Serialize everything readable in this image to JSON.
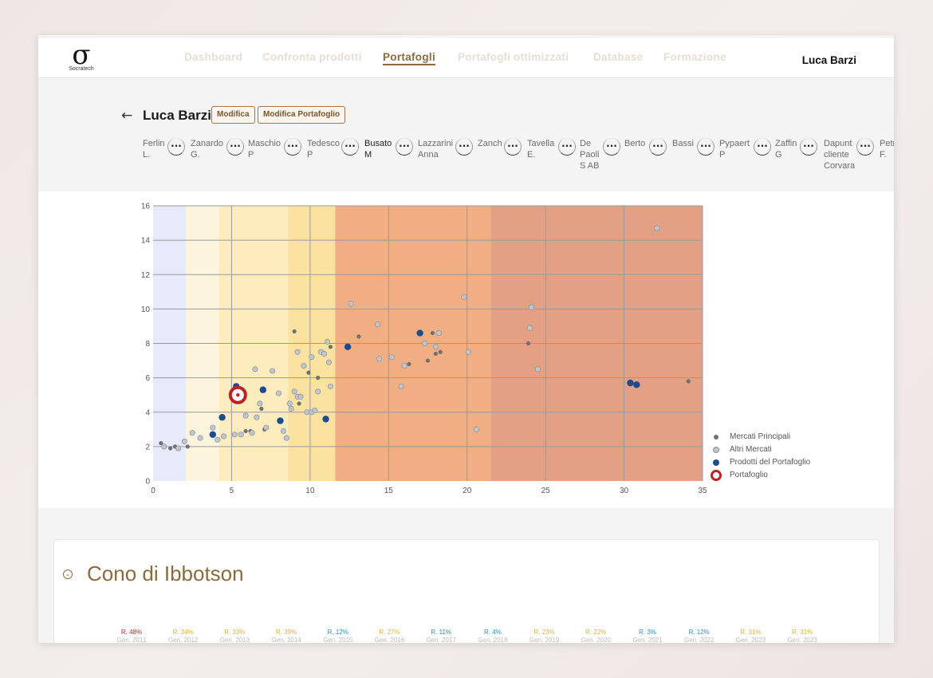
{
  "app": {
    "logo_text": "Socratech",
    "logo_symbol": "σ"
  },
  "nav": {
    "items": [
      "Dashboard",
      "Confronta prodotti",
      "Portafogli",
      "Portafogli ottimizzati",
      "Database",
      "Formazione"
    ],
    "active": "Portafogli",
    "user": "Luca Barzi"
  },
  "header": {
    "back_icon": "arrow-left-icon",
    "client_name": "Luca Barzi",
    "edit_label": "Modifica",
    "edit_portfolio_label": "Modifica Portafoglio"
  },
  "clients": [
    {
      "name": "Ferlin\nL.",
      "bold": false
    },
    {
      "name": "Zanardo\nG.",
      "bold": false
    },
    {
      "name": "Maschio\nP",
      "bold": false
    },
    {
      "name": "Tedesco\nP",
      "bold": false
    },
    {
      "name": "Busato\nM",
      "bold": true
    },
    {
      "name": "Lazzarini\nAnna",
      "bold": false
    },
    {
      "name": "Zanch",
      "bold": false
    },
    {
      "name": "Tavella\nE.",
      "bold": false
    },
    {
      "name": "De\nPaoli\nS AB",
      "bold": false
    },
    {
      "name": "Berto",
      "bold": false
    },
    {
      "name": "Bassi",
      "bold": false
    },
    {
      "name": "Pypaert\nP",
      "bold": false
    },
    {
      "name": "Zaffin\nG",
      "bold": false
    },
    {
      "name": "Dapunt\ncliente\nCorvara",
      "bold": false
    },
    {
      "name": "Petr\nF.",
      "bold": false
    }
  ],
  "chip_more": "...",
  "chart_data": {
    "type": "scatter",
    "xlim": [
      0,
      35
    ],
    "ylim": [
      0,
      16
    ],
    "x_ticks": [
      0,
      5,
      10,
      15,
      20,
      25,
      30,
      35
    ],
    "y_ticks": [
      0,
      2,
      4,
      6,
      8,
      10,
      12,
      14,
      16
    ],
    "grid": true,
    "legend_position": "bottom-right",
    "bands": [
      {
        "from": 0,
        "to": 2.1,
        "color": "#e6eafb"
      },
      {
        "from": 2.1,
        "to": 4.2,
        "color": "#fdf4de"
      },
      {
        "from": 4.2,
        "to": 8.6,
        "color": "#fcecbe"
      },
      {
        "from": 8.6,
        "to": 11.6,
        "color": "#fbe2a0"
      },
      {
        "from": 11.6,
        "to": 21.5,
        "color": "#f1ae82"
      },
      {
        "from": 21.5,
        "to": 35,
        "color": "#e4a085"
      }
    ],
    "series": [
      {
        "name": "Mercati Principali",
        "color": "#707070",
        "points": [
          [
            0.5,
            2.2
          ],
          [
            1.1,
            1.9
          ],
          [
            1.4,
            2.0
          ],
          [
            2.2,
            2.0
          ],
          [
            5.9,
            2.9
          ],
          [
            6.2,
            2.9
          ],
          [
            7.1,
            3.0
          ],
          [
            6.9,
            4.2
          ],
          [
            9.3,
            4.5
          ],
          [
            9.9,
            6.3
          ],
          [
            10.5,
            6.0
          ],
          [
            11.3,
            7.8
          ],
          [
            9.0,
            8.7
          ],
          [
            13.1,
            8.4
          ],
          [
            16.3,
            6.8
          ],
          [
            17.5,
            7.0
          ],
          [
            17.8,
            8.6
          ],
          [
            18.0,
            7.4
          ],
          [
            18.3,
            7.5
          ],
          [
            23.9,
            8.0
          ],
          [
            34.1,
            5.8
          ]
        ]
      },
      {
        "name": "Altri Mercati",
        "color": "#c0c6cf",
        "points": [
          [
            0.7,
            2.0
          ],
          [
            1.6,
            1.9
          ],
          [
            2.0,
            2.3
          ],
          [
            2.5,
            2.8
          ],
          [
            3.0,
            2.5
          ],
          [
            3.8,
            3.1
          ],
          [
            4.1,
            2.4
          ],
          [
            4.5,
            2.6
          ],
          [
            5.2,
            2.7
          ],
          [
            5.6,
            2.7
          ],
          [
            5.9,
            3.8
          ],
          [
            6.3,
            2.8
          ],
          [
            6.6,
            3.7
          ],
          [
            6.8,
            4.5
          ],
          [
            7.2,
            3.1
          ],
          [
            7.6,
            6.4
          ],
          [
            8.0,
            5.1
          ],
          [
            8.3,
            2.9
          ],
          [
            8.5,
            2.5
          ],
          [
            8.8,
            4.2
          ],
          [
            8.7,
            4.5
          ],
          [
            9.0,
            5.2
          ],
          [
            9.2,
            4.9
          ],
          [
            9.4,
            4.9
          ],
          [
            9.6,
            6.7
          ],
          [
            9.8,
            4.0
          ],
          [
            10.1,
            4.0
          ],
          [
            10.3,
            4.1
          ],
          [
            10.5,
            5.2
          ],
          [
            10.7,
            7.5
          ],
          [
            10.9,
            7.4
          ],
          [
            11.1,
            8.1
          ],
          [
            11.2,
            6.9
          ],
          [
            11.3,
            5.5
          ],
          [
            9.2,
            7.5
          ],
          [
            10.1,
            7.2
          ],
          [
            6.5,
            6.5
          ],
          [
            12.6,
            10.3
          ],
          [
            14.3,
            9.1
          ],
          [
            14.4,
            7.1
          ],
          [
            15.2,
            7.2
          ],
          [
            15.8,
            5.5
          ],
          [
            16.0,
            6.7
          ],
          [
            17.3,
            8.0
          ],
          [
            18.0,
            7.8
          ],
          [
            18.2,
            8.6
          ],
          [
            19.8,
            10.7
          ],
          [
            20.1,
            7.5
          ],
          [
            20.6,
            3.0
          ],
          [
            24.0,
            8.9
          ],
          [
            24.1,
            10.1
          ],
          [
            24.5,
            6.5
          ],
          [
            32.1,
            14.7
          ]
        ]
      },
      {
        "name": "Prodotti del Portafoglio",
        "color": "#1e4b8f",
        "points": [
          [
            3.8,
            2.7
          ],
          [
            4.4,
            3.7
          ],
          [
            5.3,
            5.5
          ],
          [
            7.0,
            5.3
          ],
          [
            8.1,
            3.5
          ],
          [
            11.0,
            3.6
          ],
          [
            12.4,
            7.8
          ],
          [
            17.0,
            8.6
          ],
          [
            30.4,
            5.7
          ],
          [
            30.8,
            5.6
          ]
        ]
      },
      {
        "name": "Portafoglio",
        "color": "#c0201f",
        "points": [
          [
            5.4,
            5.0
          ]
        ]
      }
    ]
  },
  "ibbotson": {
    "toggle_icon": "chevron-down-icon",
    "title": "Cono di Ibbotson",
    "years": [
      {
        "r": "R. 48%",
        "g": "Gen. 2011",
        "color": "#c0201f"
      },
      {
        "r": "R. 34%",
        "g": "Gen. 2012",
        "color": "#e0b030"
      },
      {
        "r": "R. 33%",
        "g": "Gen. 2013",
        "color": "#e0b030"
      },
      {
        "r": "R. 39%",
        "g": "Gen. 2014",
        "color": "#e0b030"
      },
      {
        "r": "R. 12%",
        "g": "Gen. 2015",
        "color": "#2a8fc0"
      },
      {
        "r": "R. 27%",
        "g": "Gen. 2016",
        "color": "#e0b030"
      },
      {
        "r": "R. 11%",
        "g": "Gen. 2017",
        "color": "#2a8fc0"
      },
      {
        "r": "R. 4%",
        "g": "Gen. 2018",
        "color": "#2a8fc0"
      },
      {
        "r": "R. 23%",
        "g": "Gen. 2019",
        "color": "#e0b030"
      },
      {
        "r": "R. 22%",
        "g": "Gen. 2020",
        "color": "#e0b030"
      },
      {
        "r": "R. 3%",
        "g": "Gen. 2021",
        "color": "#2a8fc0"
      },
      {
        "r": "R. 12%",
        "g": "Gen. 2022",
        "color": "#2a8fc0"
      },
      {
        "r": "R. 31%",
        "g": "Gen. 2023",
        "color": "#e0b030"
      },
      {
        "r": "R. 31%",
        "g": "Gen. 2023",
        "color": "#e0b030"
      }
    ]
  }
}
